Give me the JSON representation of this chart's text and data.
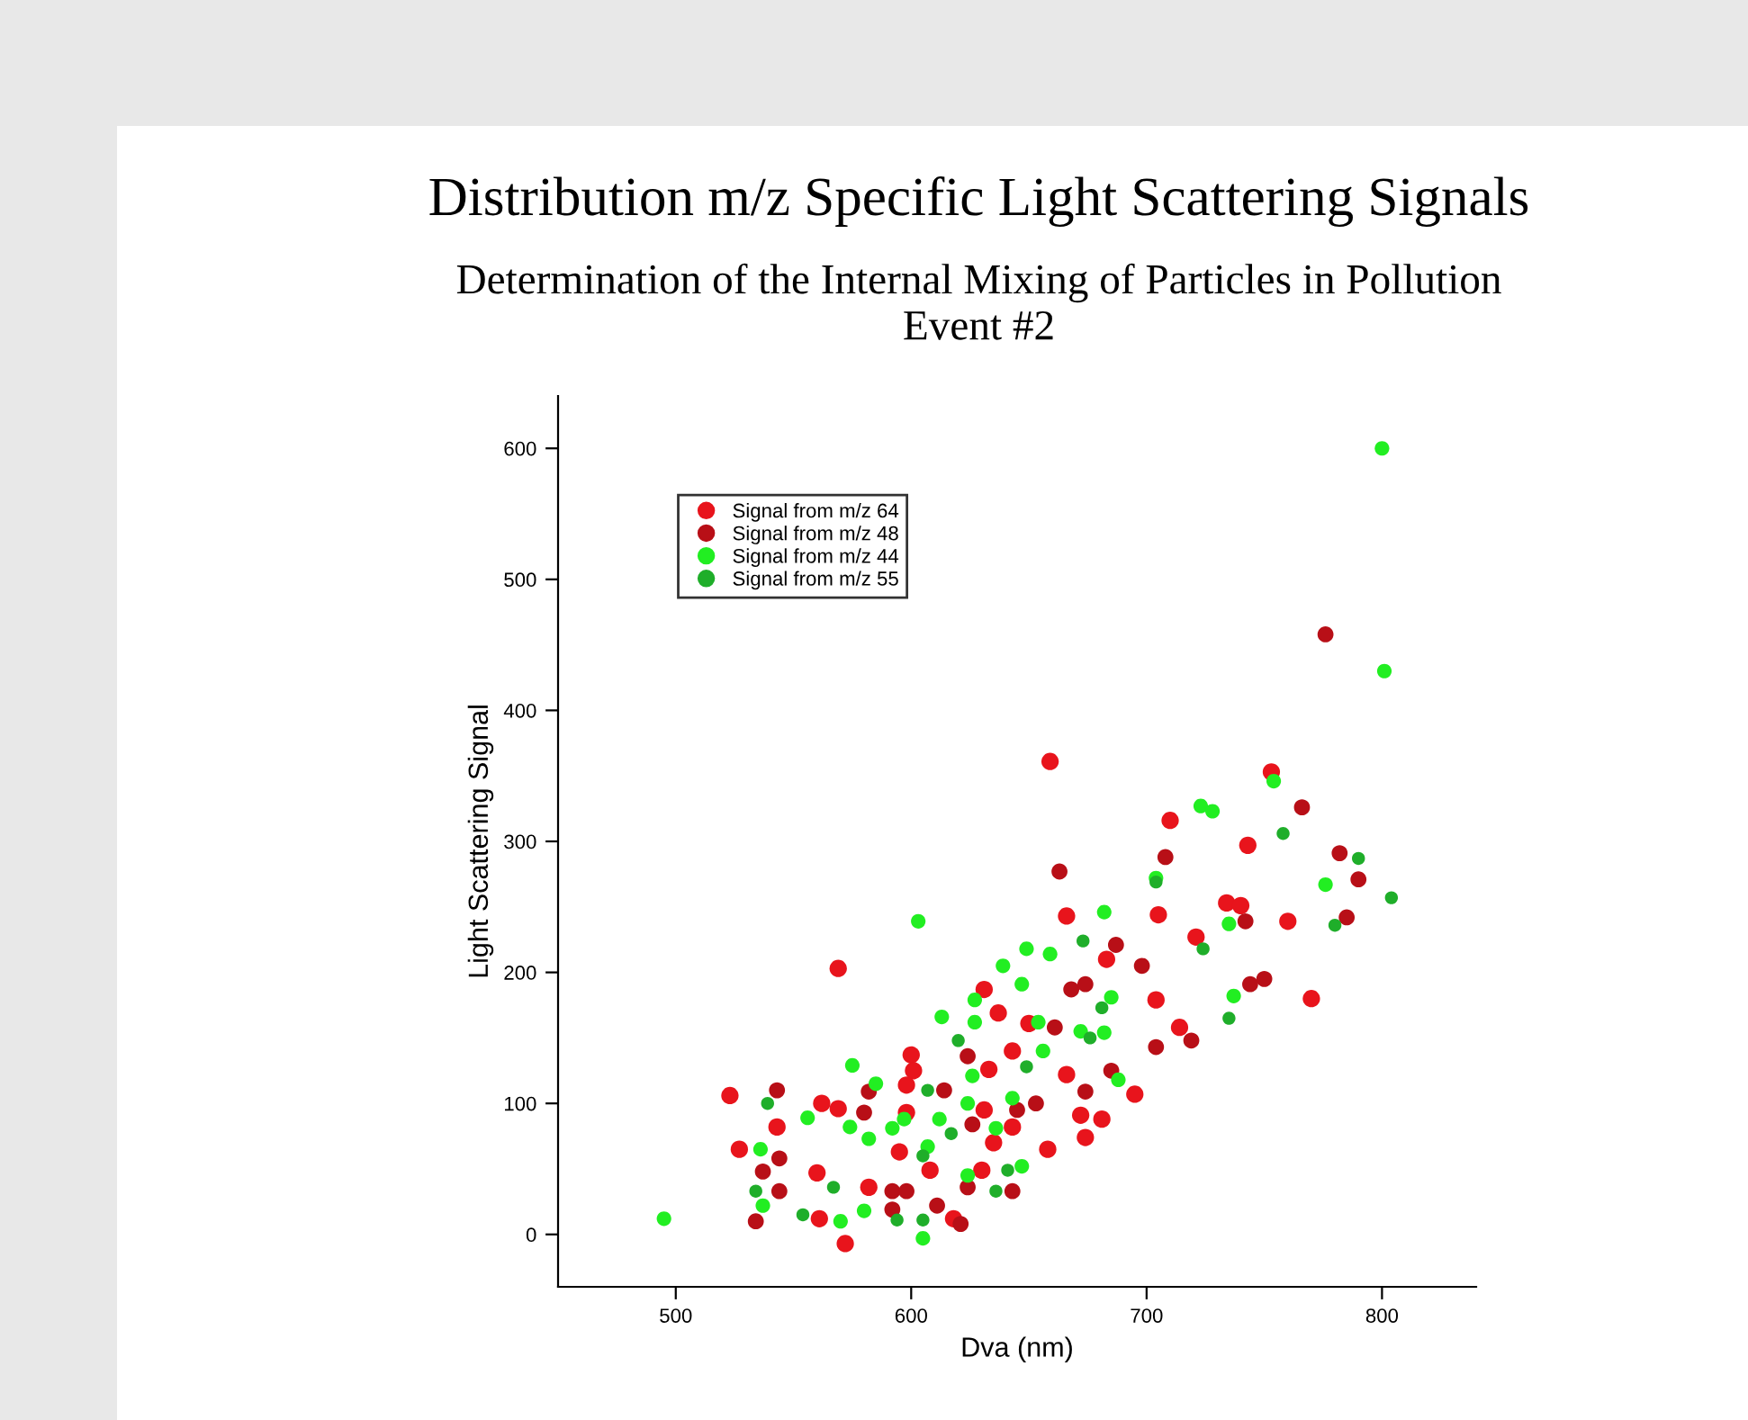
{
  "chart_data": {
    "type": "scatter",
    "title": "Distribution m/z Specific Light Scattering Signals",
    "subtitle": "Determination of the Internal Mixing of Particles in Pollution\nEvent #2",
    "xlabel": "Dva (nm)",
    "ylabel": "Light Scattering Signal",
    "xlim": [
      450,
      840
    ],
    "ylim": [
      -40,
      640
    ],
    "xticks": [
      500,
      600,
      700,
      800
    ],
    "yticks": [
      0,
      100,
      200,
      300,
      400,
      500,
      600
    ],
    "grid": false,
    "legend": "top left",
    "marker": "circle",
    "series": [
      {
        "name": "Signal from m/z 64",
        "color": "#e8141c",
        "x": [
          569,
          523,
          543,
          562,
          569,
          527,
          560,
          561,
          572,
          666,
          705,
          631,
          683,
          637,
          650,
          643,
          633,
          666,
          695,
          600,
          601,
          598,
          631,
          643,
          672,
          681,
          674,
          658,
          635,
          598,
          595,
          608,
          630,
          582,
          618,
          753,
          710,
          743,
          734,
          740,
          760,
          721,
          770,
          714,
          659,
          704
        ],
        "values": [
          203,
          106,
          82,
          100,
          96,
          65,
          47,
          12,
          -7,
          243,
          244,
          187,
          210,
          169,
          161,
          140,
          126,
          122,
          107,
          137,
          125,
          114,
          95,
          82,
          91,
          88,
          74,
          65,
          70,
          93,
          63,
          49,
          49,
          36,
          12,
          353,
          316,
          297,
          253,
          251,
          239,
          227,
          180,
          158,
          361,
          179
        ]
      },
      {
        "name": "Signal from m/z 48",
        "color": "#b80f17",
        "x": [
          543,
          544,
          537,
          544,
          534,
          663,
          687,
          698,
          668,
          674,
          661,
          704,
          624,
          685,
          674,
          614,
          582,
          580,
          653,
          626,
          645,
          643,
          624,
          592,
          598,
          592,
          611,
          621,
          766,
          708,
          782,
          790,
          742,
          785,
          744,
          750,
          719,
          776
        ],
        "values": [
          110,
          58,
          48,
          33,
          10,
          277,
          221,
          205,
          187,
          191,
          158,
          143,
          136,
          125,
          109,
          110,
          109,
          93,
          100,
          84,
          95,
          33,
          36,
          33,
          33,
          19,
          22,
          8,
          326,
          288,
          291,
          271,
          239,
          242,
          191,
          195,
          148,
          458
        ]
      },
      {
        "name": "Signal from m/z 44",
        "color": "#22ee22",
        "x": [
          575,
          556,
          574,
          536,
          537,
          495,
          570,
          603,
          682,
          649,
          659,
          639,
          647,
          627,
          685,
          613,
          627,
          654,
          672,
          682,
          656,
          626,
          688,
          585,
          643,
          624,
          636,
          612,
          597,
          582,
          592,
          607,
          624,
          647,
          580,
          605,
          754,
          723,
          728,
          704,
          776,
          735,
          737,
          800,
          801
        ],
        "values": [
          129,
          89,
          82,
          65,
          22,
          12,
          10,
          239,
          246,
          218,
          214,
          205,
          191,
          179,
          181,
          166,
          162,
          162,
          155,
          154,
          140,
          121,
          118,
          115,
          104,
          100,
          81,
          88,
          88,
          73,
          81,
          67,
          45,
          52,
          18,
          -3,
          346,
          327,
          323,
          272,
          267,
          237,
          182,
          600,
          430
        ]
      },
      {
        "name": "Signal from m/z 55",
        "color": "#1fae2a",
        "x": [
          539,
          534,
          554,
          567,
          704,
          673,
          681,
          676,
          620,
          649,
          607,
          617,
          605,
          641,
          636,
          594,
          605,
          758,
          790,
          804,
          780,
          724,
          735
        ],
        "values": [
          100,
          33,
          15,
          36,
          269,
          224,
          173,
          150,
          148,
          128,
          110,
          77,
          60,
          49,
          33,
          11,
          11,
          306,
          287,
          257,
          236,
          218,
          165
        ]
      }
    ]
  }
}
